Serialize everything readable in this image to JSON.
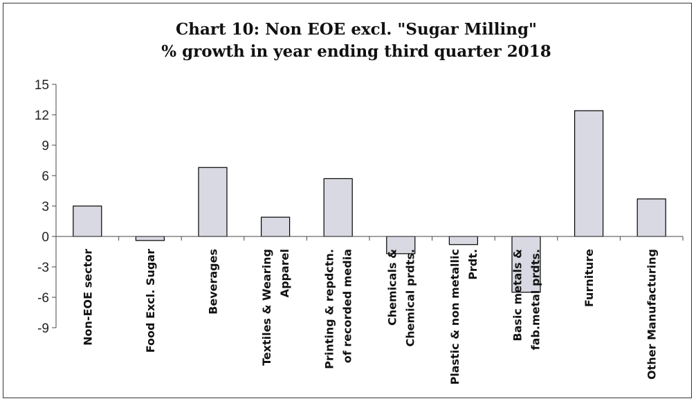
{
  "chart_data": {
    "type": "bar",
    "title": "Chart 10: Non EOE excl. \"Sugar Milling\"",
    "subtitle": "% growth in year ending third quarter 2018",
    "xlabel": "",
    "ylabel": "",
    "ylim": [
      -9,
      15
    ],
    "yticks": [
      15,
      12,
      9,
      6,
      3,
      0,
      -3,
      -6,
      -9
    ],
    "grid": false,
    "categories": [
      [
        "Non-EOE sector"
      ],
      [
        "Food Excl. Sugar"
      ],
      [
        "Beverages"
      ],
      [
        "Textiles & Wearing",
        "Apparel"
      ],
      [
        "Printing & repdctn.",
        "of recorded media"
      ],
      [
        "Chemicals &",
        "Chemical prdts."
      ],
      [
        "Plastic & non metallic",
        "Prdt."
      ],
      [
        "Basic metals &",
        "fab.metal prdts."
      ],
      [
        "Furniture"
      ],
      [
        "Other Manufacturing"
      ]
    ],
    "values": [
      3.0,
      -0.4,
      6.8,
      1.9,
      5.7,
      -1.7,
      -0.8,
      -5.5,
      12.4,
      3.7
    ],
    "bar_color": "#d9d9e3",
    "bar_stroke": "#000000"
  }
}
